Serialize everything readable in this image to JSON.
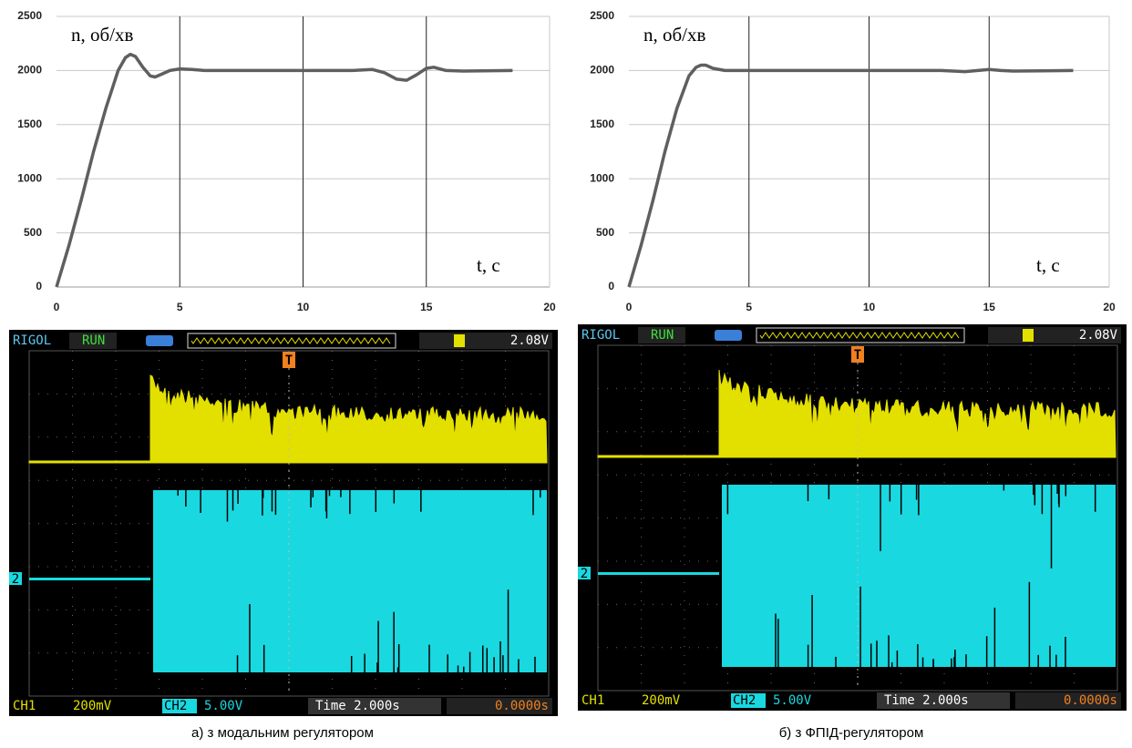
{
  "chart_data": [
    {
      "type": "line",
      "ylabel": "n, об/хв",
      "xlabel": "t, с",
      "x": [
        0,
        0.5,
        1,
        1.5,
        2,
        2.5,
        2.8,
        3,
        3.2,
        3.5,
        3.8,
        4,
        4.3,
        4.6,
        5,
        5.5,
        6,
        8,
        10,
        12,
        12.8,
        13.3,
        13.8,
        14.2,
        14.6,
        15,
        15.3,
        15.8,
        16.5,
        18.5
      ],
      "series": [
        {
          "color": "#5f5f5f",
          "values": [
            0,
            380,
            800,
            1250,
            1650,
            2000,
            2120,
            2150,
            2130,
            2030,
            1950,
            1940,
            1970,
            2000,
            2015,
            2010,
            2000,
            2000,
            2000,
            2000,
            2010,
            1980,
            1920,
            1910,
            1960,
            2020,
            2030,
            2000,
            1995,
            2000
          ]
        }
      ],
      "xlim": [
        0,
        20
      ],
      "ylim": [
        0,
        2500
      ],
      "xticks": [
        0,
        5,
        10,
        15,
        20
      ],
      "yticks": [
        0,
        500,
        1000,
        1500,
        2000,
        2500
      ],
      "grid": true
    },
    {
      "type": "line",
      "ylabel": "n, об/хв",
      "xlabel": "t, с",
      "x": [
        0,
        0.5,
        1,
        1.5,
        2,
        2.5,
        2.8,
        3,
        3.2,
        3.5,
        4,
        5,
        8,
        10,
        13,
        14,
        15,
        15.5,
        16,
        18.5
      ],
      "series": [
        {
          "color": "#5f5f5f",
          "values": [
            0,
            380,
            800,
            1250,
            1650,
            1950,
            2030,
            2050,
            2050,
            2020,
            2000,
            2000,
            2000,
            2000,
            2000,
            1990,
            2010,
            2000,
            1995,
            2000
          ]
        }
      ],
      "xlim": [
        0,
        20
      ],
      "ylim": [
        0,
        2500
      ],
      "xticks": [
        0,
        5,
        10,
        15,
        20
      ],
      "yticks": [
        0,
        500,
        1000,
        1500,
        2000,
        2500
      ],
      "grid": true
    }
  ],
  "scopes": [
    {
      "brand": "RIGOL",
      "status": "RUN",
      "trigger_level": "2.08V",
      "trigger_marker": "T",
      "channel_marker": "2",
      "ch1": "CH1",
      "ch1_scale": "200mV",
      "ch2": "CH2",
      "ch2_scale": "5.00V",
      "time": "Time 2.000s",
      "offset": "0.0000s",
      "caption": "а) з модальним регулятором"
    },
    {
      "brand": "RIGOL",
      "status": "RUN",
      "trigger_level": "2.08V",
      "trigger_marker": "T",
      "channel_marker": "2",
      "ch1": "CH1",
      "ch1_scale": "200mV",
      "ch2": "CH2",
      "ch2_scale": "5.00V",
      "time": "Time 2.000s",
      "offset": "0.0000s",
      "caption": "б) з ФПІД-регулятором"
    }
  ]
}
